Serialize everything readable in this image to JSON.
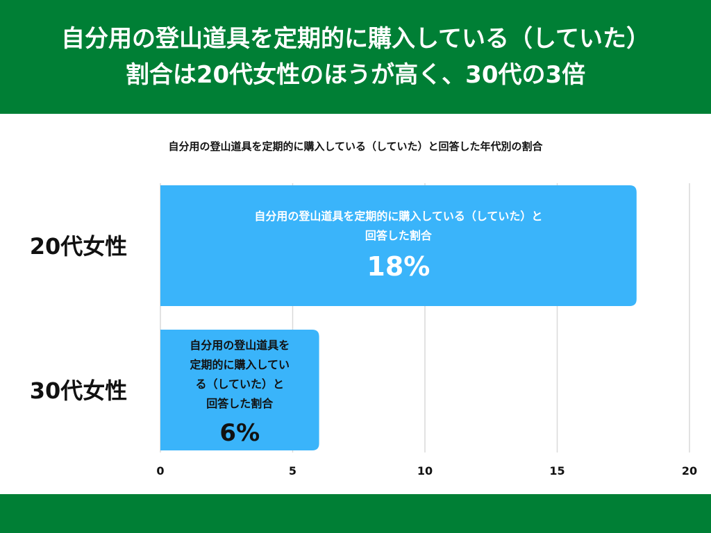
{
  "header": {
    "title_line1": "自分用の登山道具を定期的に購入している（していた）",
    "title_line2": "割合は20代女性のほうが高く、30代の3倍"
  },
  "colors": {
    "band": "#007f35",
    "bar": "#3ab4fa",
    "grid": "#d9d9d9"
  },
  "chart_data": {
    "type": "bar",
    "orientation": "horizontal",
    "title": "自分用の登山道具を定期的に購入している（していた）と回答した年代別の割合",
    "categories": [
      "20代女性",
      "30代女性"
    ],
    "series": [
      {
        "name": "自分用の登山道具を定期的に購入している（していた）と回答した割合",
        "values": [
          18,
          6
        ]
      }
    ],
    "data_labels": [
      "18%",
      "6%"
    ],
    "bar_captions": [
      [
        "自分用の登山道具を定期的に購入している（していた）と",
        "回答した割合"
      ],
      [
        "自分用の登山道具を",
        "定期的に購入してい",
        "る（していた）と",
        "回答した割合"
      ]
    ],
    "xlim": [
      0,
      20
    ],
    "xticks": [
      0,
      5,
      10,
      15,
      20
    ],
    "xlabel": "",
    "ylabel": "",
    "grid": true,
    "legend": "none"
  }
}
